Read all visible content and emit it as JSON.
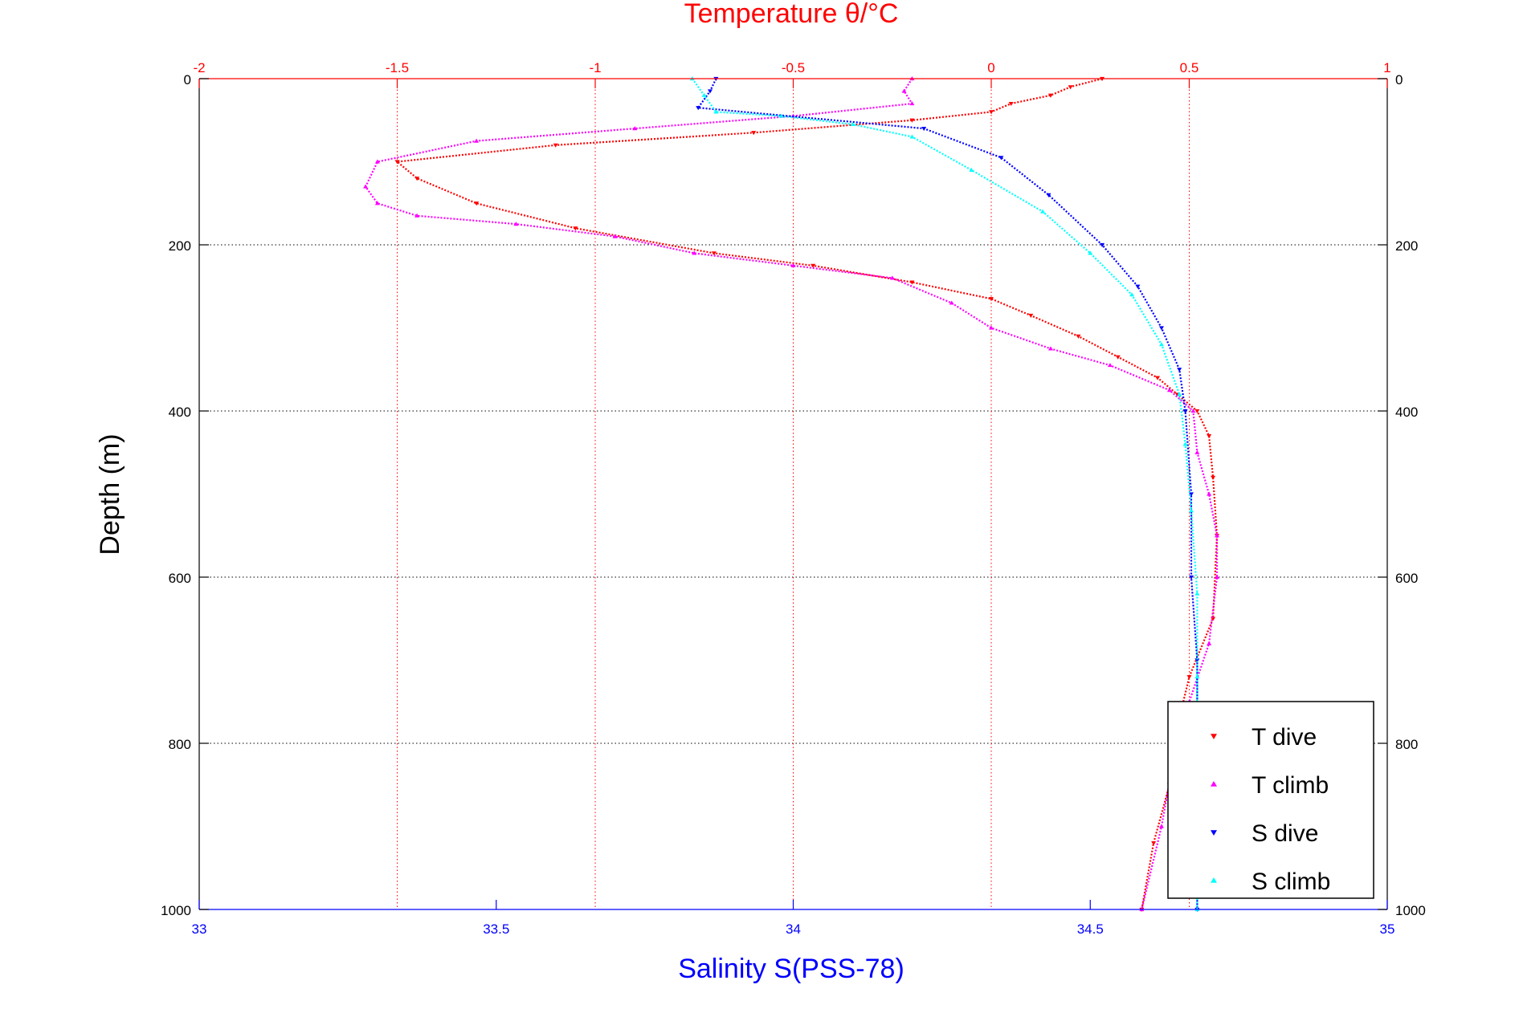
{
  "chart_data": {
    "type": "scatter",
    "title": "Temperature θ/°C",
    "xlabel": "Salinity S(PSS-78)",
    "ylabel": "Depth (m)",
    "temperature_axis": {
      "label": "Temperature θ/°C",
      "lim": [
        -2,
        1
      ],
      "ticks": [
        "-2",
        "-1.5",
        "-1",
        "-0.5",
        "0",
        "0.5",
        "1"
      ],
      "color": "#ff0000"
    },
    "salinity_axis": {
      "label": "Salinity S(PSS-78)",
      "lim": [
        33,
        35
      ],
      "ticks": [
        "33",
        "33.5",
        "34",
        "34.5",
        "35"
      ],
      "color": "#0000ff"
    },
    "depth_axis": {
      "label": "Depth (m)",
      "lim": [
        0,
        1000
      ],
      "reversed": true,
      "ticks": [
        "0",
        "200",
        "400",
        "600",
        "800",
        "1000"
      ]
    },
    "grid": true,
    "legend_position": "bottom-right",
    "legend": [
      "T dive",
      "T climb",
      "S dive",
      "S climb"
    ],
    "series": [
      {
        "name": "T dive",
        "axis": "temperature",
        "color": "#ff0000",
        "marker": "triangle-down",
        "points": [
          [
            0.28,
            0
          ],
          [
            0.2,
            10
          ],
          [
            0.15,
            20
          ],
          [
            0.05,
            30
          ],
          [
            0.0,
            40
          ],
          [
            -0.2,
            50
          ],
          [
            -0.6,
            65
          ],
          [
            -1.1,
            80
          ],
          [
            -1.5,
            100
          ],
          [
            -1.45,
            120
          ],
          [
            -1.3,
            150
          ],
          [
            -1.05,
            180
          ],
          [
            -0.7,
            210
          ],
          [
            -0.45,
            225
          ],
          [
            -0.2,
            245
          ],
          [
            0.0,
            265
          ],
          [
            0.1,
            285
          ],
          [
            0.22,
            310
          ],
          [
            0.32,
            335
          ],
          [
            0.42,
            360
          ],
          [
            0.47,
            380
          ],
          [
            0.52,
            400
          ],
          [
            0.55,
            430
          ],
          [
            0.56,
            480
          ],
          [
            0.57,
            550
          ],
          [
            0.56,
            650
          ],
          [
            0.5,
            720
          ],
          [
            0.47,
            780
          ],
          [
            0.45,
            850
          ],
          [
            0.41,
            920
          ],
          [
            0.38,
            1000
          ]
        ]
      },
      {
        "name": "T climb",
        "axis": "temperature",
        "color": "#ff00ff",
        "marker": "triangle-up",
        "points": [
          [
            -0.2,
            0
          ],
          [
            -0.22,
            15
          ],
          [
            -0.2,
            30
          ],
          [
            -0.5,
            45
          ],
          [
            -0.9,
            60
          ],
          [
            -1.3,
            75
          ],
          [
            -1.55,
            100
          ],
          [
            -1.58,
            130
          ],
          [
            -1.55,
            150
          ],
          [
            -1.45,
            165
          ],
          [
            -1.2,
            175
          ],
          [
            -0.95,
            190
          ],
          [
            -0.75,
            210
          ],
          [
            -0.5,
            225
          ],
          [
            -0.25,
            240
          ],
          [
            -0.1,
            270
          ],
          [
            0.0,
            300
          ],
          [
            0.15,
            325
          ],
          [
            0.3,
            345
          ],
          [
            0.45,
            375
          ],
          [
            0.51,
            400
          ],
          [
            0.52,
            450
          ],
          [
            0.55,
            500
          ],
          [
            0.57,
            550
          ],
          [
            0.57,
            600
          ],
          [
            0.55,
            680
          ],
          [
            0.5,
            750
          ],
          [
            0.46,
            820
          ],
          [
            0.43,
            900
          ],
          [
            0.38,
            1000
          ]
        ]
      },
      {
        "name": "S dive",
        "axis": "salinity",
        "color": "#0000ff",
        "marker": "triangle-down",
        "points": [
          [
            33.87,
            0
          ],
          [
            33.86,
            15
          ],
          [
            33.84,
            35
          ],
          [
            34.22,
            60
          ],
          [
            34.35,
            95
          ],
          [
            34.43,
            140
          ],
          [
            34.52,
            200
          ],
          [
            34.58,
            250
          ],
          [
            34.62,
            300
          ],
          [
            34.65,
            350
          ],
          [
            34.66,
            400
          ],
          [
            34.67,
            500
          ],
          [
            34.67,
            600
          ],
          [
            34.68,
            700
          ],
          [
            34.68,
            800
          ],
          [
            34.68,
            900
          ],
          [
            34.68,
            1000
          ]
        ]
      },
      {
        "name": "S climb",
        "axis": "salinity",
        "color": "#00ffff",
        "marker": "triangle-up",
        "points": [
          [
            33.83,
            0
          ],
          [
            33.85,
            20
          ],
          [
            33.87,
            40
          ],
          [
            33.98,
            45
          ],
          [
            34.1,
            55
          ],
          [
            34.2,
            70
          ],
          [
            34.3,
            110
          ],
          [
            34.42,
            160
          ],
          [
            34.5,
            210
          ],
          [
            34.57,
            260
          ],
          [
            34.62,
            320
          ],
          [
            34.65,
            380
          ],
          [
            34.66,
            440
          ],
          [
            34.67,
            520
          ],
          [
            34.68,
            620
          ],
          [
            34.68,
            720
          ],
          [
            34.68,
            820
          ],
          [
            34.68,
            920
          ],
          [
            34.68,
            1000
          ]
        ]
      }
    ]
  }
}
